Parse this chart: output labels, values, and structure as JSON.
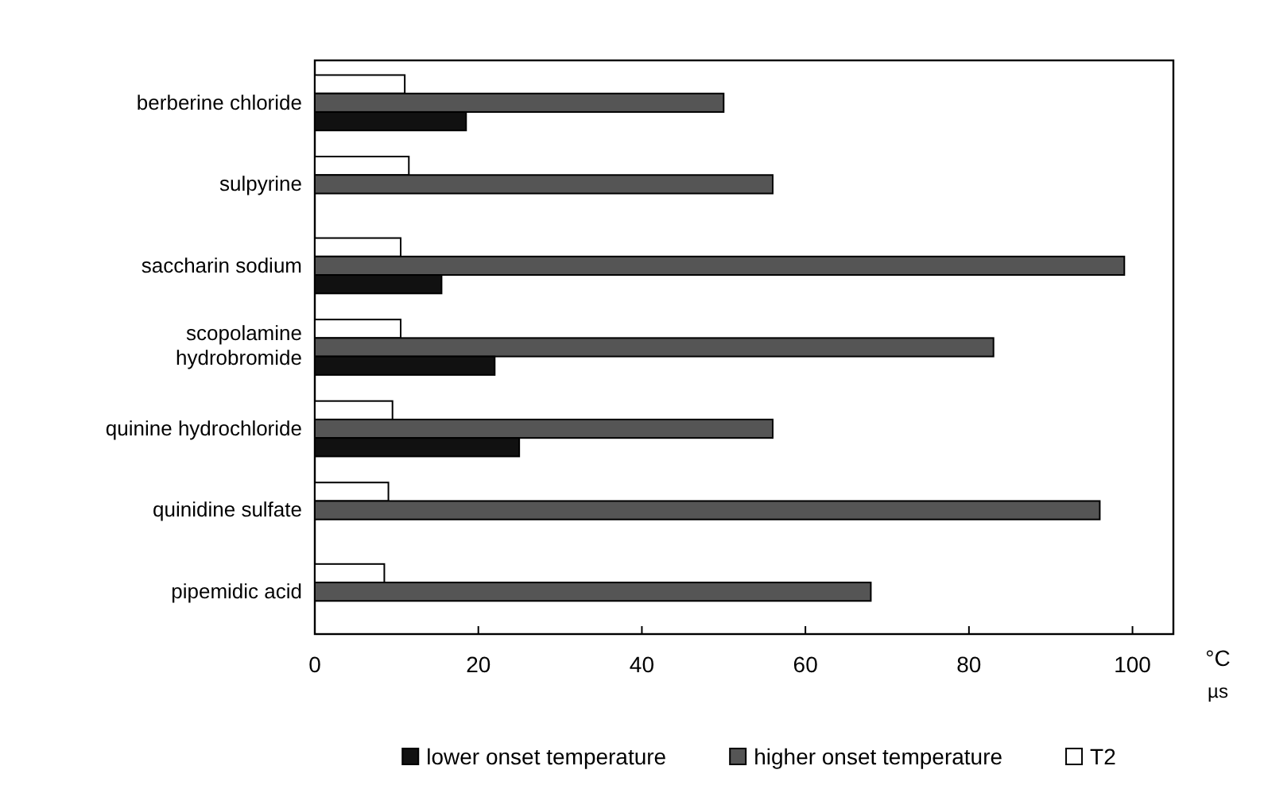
{
  "chart_data": {
    "type": "bar",
    "orientation": "horizontal",
    "categories": [
      "berberine chloride",
      "sulpyrine",
      "saccharin sodium",
      "scopolamine hydrobromide",
      "quinine hydrochloride",
      "quinidine sulfate",
      "pipemidic acid"
    ],
    "series": [
      {
        "name": "lower onset temperature",
        "color": "#111111",
        "values": [
          18.5,
          null,
          15.5,
          22,
          25,
          null,
          null
        ]
      },
      {
        "name": "higher onset temperature",
        "color": "#555555",
        "values": [
          50,
          56,
          99,
          83,
          56,
          96,
          68
        ]
      },
      {
        "name": "T2",
        "color": "#ffffff",
        "values": [
          11,
          11.5,
          10.5,
          10.5,
          9.5,
          9,
          8.5
        ]
      }
    ],
    "xlim": [
      0,
      105
    ],
    "xticks": [
      0,
      20,
      40,
      60,
      80,
      100
    ],
    "xlabel": "°C",
    "annotations": [
      "µs"
    ],
    "legend": "bottom",
    "grid": false
  }
}
